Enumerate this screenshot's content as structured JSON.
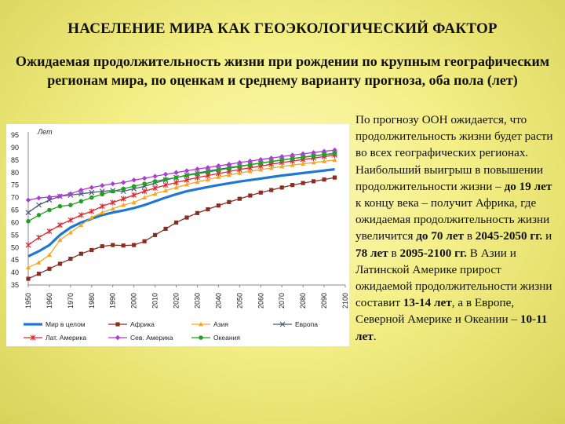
{
  "title": "НАСЕЛЕНИЕ МИРА КАК ГЕОЭКОЛОГИЧЕСКИЙ ФАКТОР",
  "subtitle": "Ожидаемая продолжительность жизни при рождении по крупным географическим регионам мира, по оценкам и среднему варианту прогноза, оба пола (лет)",
  "paragraph": {
    "p1": "По прогнозу ООН ожидается, что продолжительность жизни будет расти во всех географических регионах. Наибольший выигрыш в повышении продолжительности жизни – ",
    "b1": "до 19 лет",
    "p2": " к концу века – получит Африка, где ожидаемая продолжительность жизни увеличится ",
    "b2": "до 70 лет",
    "p3": " в ",
    "b3": "2045-2050 гг.",
    "p4": " и ",
    "b4": "78 лет",
    "p5": " в ",
    "b5": "2095-2100 гг.",
    "p6": " В Азии и Латинской Америке прирост ожидаемой продолжительности жизни составит ",
    "b6": "13-14 лет",
    "p7": ", а в Европе, Северной Америке и Океании – ",
    "b7": "10-11 лет",
    "p8": "."
  },
  "chart_data": {
    "type": "line",
    "ylabel": "Лет",
    "ylim": [
      35,
      95
    ],
    "yticks": [
      35,
      40,
      45,
      50,
      55,
      60,
      65,
      70,
      75,
      80,
      85,
      90,
      95
    ],
    "xlim": [
      1950,
      2100
    ],
    "xticks": [
      "1950",
      "1960",
      "1970",
      "1980",
      "1990",
      "2000",
      "2010",
      "2020",
      "2030",
      "2040",
      "2050",
      "2060",
      "2070",
      "2080",
      "2090",
      "2100"
    ],
    "grid": false,
    "legend_position": "bottom",
    "x": [
      1950,
      1955,
      1960,
      1965,
      1970,
      1975,
      1980,
      1985,
      1990,
      1995,
      2000,
      2005,
      2010,
      2015,
      2020,
      2025,
      2030,
      2035,
      2040,
      2045,
      2050,
      2055,
      2060,
      2065,
      2070,
      2075,
      2080,
      2085,
      2090,
      2095
    ],
    "series": [
      {
        "name": "Мир в целом",
        "color": "#1f77d4",
        "marker": "none",
        "values": [
          46.5,
          48.5,
          51,
          55,
          58,
          60,
          61.5,
          63,
          64,
          64.8,
          65.8,
          67,
          68.5,
          70,
          71.3,
          72.5,
          73.4,
          74.2,
          75,
          75.7,
          76.4,
          77,
          77.6,
          78.2,
          78.8,
          79.3,
          79.8,
          80.3,
          80.8,
          81.3
        ]
      },
      {
        "name": "Африка",
        "color": "#8b2e22",
        "marker": "square",
        "values": [
          37.5,
          39.5,
          41.5,
          43.5,
          45.5,
          47.5,
          49,
          50.5,
          51,
          50.8,
          51,
          52.5,
          55,
          57.5,
          60,
          62,
          63.8,
          65.3,
          66.8,
          68.2,
          69.5,
          70.8,
          72,
          73,
          74,
          75,
          75.8,
          76.5,
          77.2,
          78
        ]
      },
      {
        "name": "Азия",
        "color": "#f5a623",
        "marker": "triangle",
        "values": [
          42,
          44,
          47,
          53,
          56,
          59,
          62,
          64,
          65.5,
          67,
          68,
          70,
          71.5,
          72.8,
          74,
          75.2,
          76.2,
          77.2,
          78.2,
          79,
          79.8,
          80.5,
          81.2,
          81.8,
          82.4,
          83,
          83.5,
          84,
          84.5,
          85
        ]
      },
      {
        "name": "Европа",
        "color": "#4a5a7a",
        "marker": "x",
        "values": [
          64,
          67,
          69,
          70.5,
          71,
          71.5,
          72,
          72.5,
          72.8,
          72.5,
          73.5,
          74.5,
          75.8,
          77,
          78,
          79,
          79.8,
          80.6,
          81.3,
          82,
          82.6,
          83.2,
          83.8,
          84.4,
          85,
          85.6,
          86.1,
          86.6,
          87.1,
          87.6
        ]
      },
      {
        "name": "Лат. Америка",
        "color": "#d9272e",
        "marker": "star",
        "values": [
          51,
          54,
          56.5,
          59,
          61,
          63,
          64.5,
          66.5,
          68,
          69.5,
          71,
          72.5,
          73.8,
          75,
          76,
          77,
          78,
          78.8,
          79.6,
          80.4,
          81.2,
          81.9,
          82.6,
          83.3,
          84,
          84.6,
          85.2,
          85.8,
          86.4,
          87
        ]
      },
      {
        "name": "Сев. Америка",
        "color": "#b03ad8",
        "marker": "diamond",
        "values": [
          69,
          69.8,
          70.2,
          70.6,
          71.5,
          73,
          74,
          74.8,
          75.5,
          76,
          77,
          77.7,
          78.5,
          79.3,
          80,
          80.7,
          81.4,
          82,
          82.7,
          83.3,
          84,
          84.6,
          85.2,
          85.8,
          86.4,
          87,
          87.5,
          88,
          88.5,
          89
        ]
      },
      {
        "name": "Океания",
        "color": "#22a022",
        "marker": "circle",
        "values": [
          60.5,
          63,
          65,
          66.5,
          67,
          68.5,
          70,
          71.3,
          72.5,
          73.5,
          74.5,
          75.5,
          76.5,
          77.3,
          78,
          78.8,
          79.5,
          80.2,
          81,
          81.7,
          82.4,
          83.1,
          83.8,
          84.4,
          85,
          85.6,
          86.2,
          86.7,
          87.2,
          87.7
        ]
      }
    ]
  }
}
